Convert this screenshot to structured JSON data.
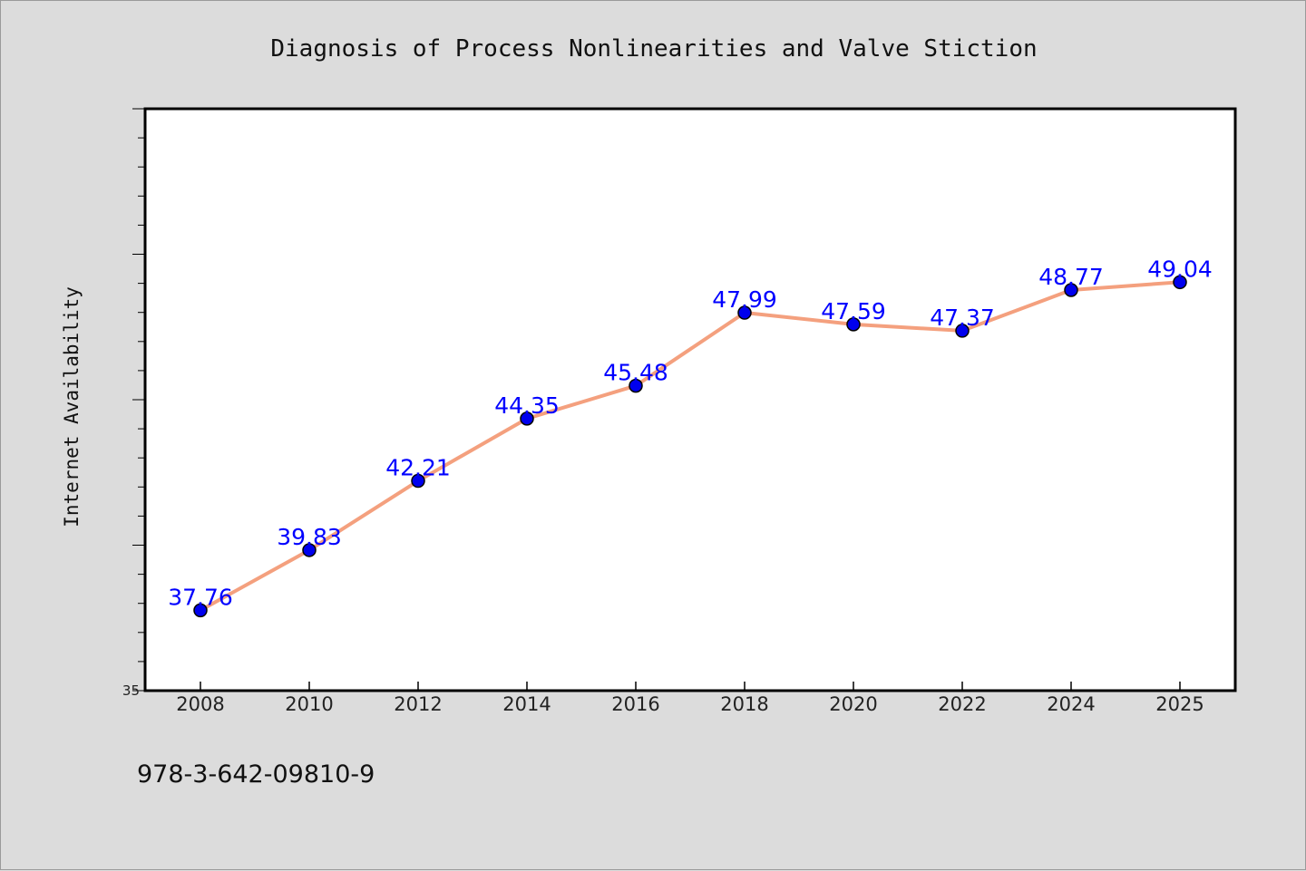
{
  "chart_data": {
    "type": "line",
    "title": "Diagnosis of Process Nonlinearities and Valve Stiction",
    "xlabel": "",
    "ylabel": "Internet Availability",
    "categories": [
      "2008",
      "2010",
      "2012",
      "2014",
      "2016",
      "2018",
      "2020",
      "2022",
      "2024",
      "2025"
    ],
    "series": [
      {
        "values": [
          37.76,
          39.83,
          42.21,
          44.35,
          45.48,
          47.99,
          47.59,
          47.37,
          48.77,
          49.04
        ],
        "data_labels": [
          "37.76",
          "39.83",
          "42.21",
          "44.35",
          "45.48",
          "47.99",
          "47.59",
          "47.37",
          "48.77",
          "49.04"
        ],
        "line_color": "#f4a07e",
        "marker_color": "#0000ee"
      }
    ],
    "ylim": [
      35,
      55
    ],
    "yticks_labeled": [
      "35"
    ],
    "grid": false,
    "legend": "none"
  },
  "footer": {
    "isbn": "978-3-642-09810-9"
  },
  "colors": {
    "background": "#dcdcdc",
    "plot_background": "#ffffff",
    "label_color": "#0000ff"
  }
}
